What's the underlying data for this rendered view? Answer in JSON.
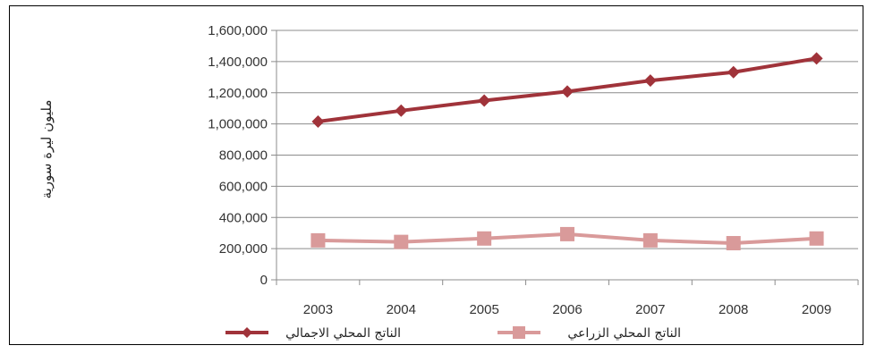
{
  "chart_data": {
    "type": "line",
    "categories": [
      "2003",
      "2004",
      "2005",
      "2006",
      "2007",
      "2008",
      "2009"
    ],
    "series": [
      {
        "name": "الناتج المحلي الاجمالي",
        "values": [
          1015000,
          1085000,
          1150000,
          1208000,
          1278000,
          1332000,
          1420000
        ],
        "color": "#A0333A",
        "marker": "diamond"
      },
      {
        "name": "الناتج المحلي الزراعي",
        "values": [
          253000,
          243000,
          265000,
          293000,
          253000,
          235000,
          265000
        ],
        "color": "#D99A9A",
        "marker": "square"
      }
    ],
    "ylabel": "مليون ليرة سورية",
    "xlabel": "",
    "title": "",
    "ylim": [
      0,
      1600000
    ],
    "yticks": [
      0,
      200000,
      400000,
      600000,
      800000,
      1000000,
      1200000,
      1400000,
      1600000
    ],
    "ytick_labels": [
      "0",
      "200,000",
      "400,000",
      "600,000",
      "800,000",
      "1,000,000",
      "1,200,000",
      "1,400,000",
      "1,600,000"
    ],
    "grid": "horizontal",
    "legend_position": "bottom"
  }
}
